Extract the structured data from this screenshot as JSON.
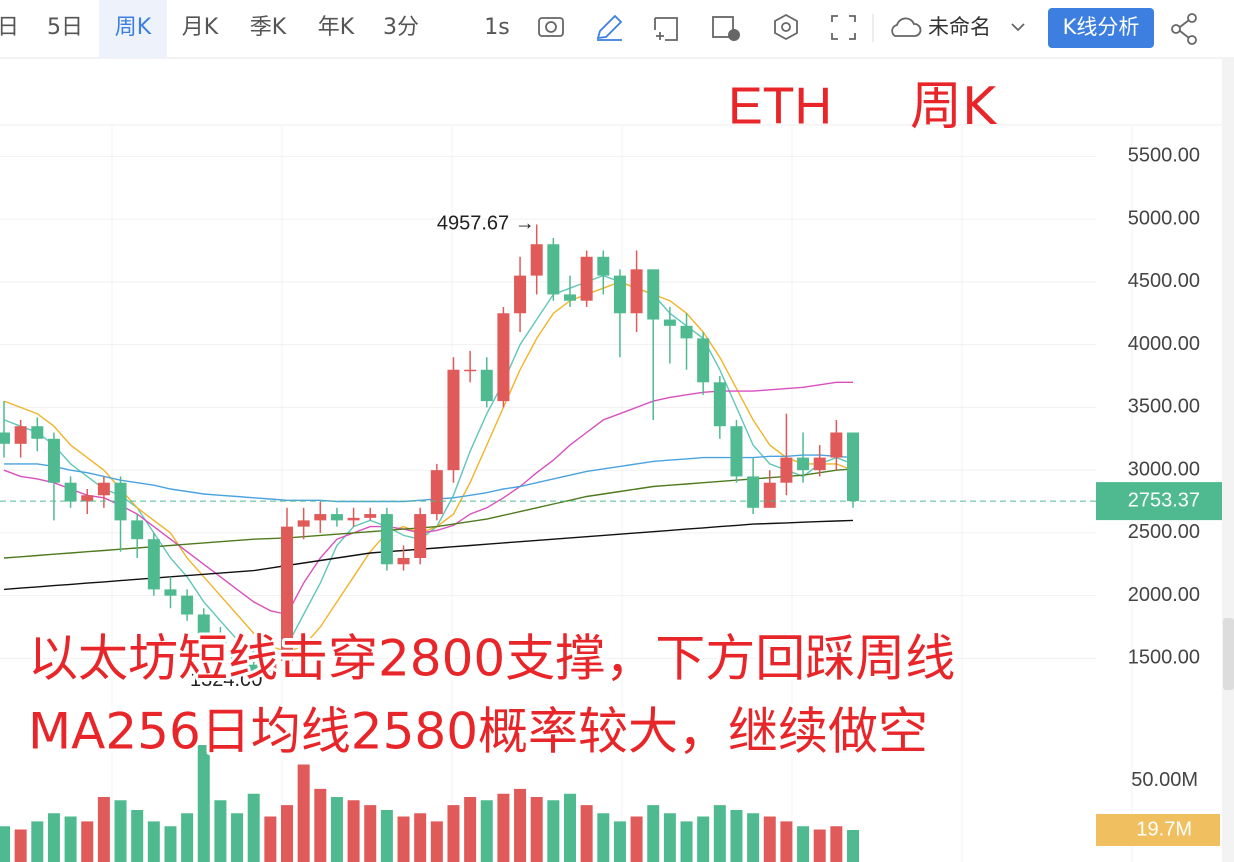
{
  "toolbar": {
    "items": [
      "日",
      "5日",
      "周K",
      "月K",
      "季K",
      "年K",
      "3分"
    ],
    "active": 2,
    "interval": "1s",
    "layout_name": "未命名",
    "analysis_button": "K线分析"
  },
  "overlay_title": [
    "ETH",
    "周K"
  ],
  "annotation": [
    "以太坊短线击穿2800支撑，下方回踩周线",
    "MA256日均线2580概率较大，继续做空"
  ],
  "chart_data": {
    "type": "candlestick",
    "open": [
      3300,
      3210,
      3350,
      3250,
      2900,
      2750,
      2800,
      2900,
      2600,
      2450,
      2050,
      2000,
      1850,
      1700,
      1600,
      1450,
      1400,
      1480,
      2550,
      2600,
      2650,
      2600,
      2620,
      2650,
      2250,
      2300,
      2650,
      3000,
      3800,
      3800,
      3550,
      4250,
      4550,
      4800,
      4400,
      4350,
      4700,
      4550,
      4250,
      4600,
      4200,
      4150,
      4050,
      3700,
      3350,
      2950,
      2700,
      2900,
      3100,
      3000,
      3100,
      3300
    ],
    "high": [
      3550,
      3400,
      3420,
      3300,
      2950,
      2850,
      2950,
      2950,
      2650,
      2500,
      2150,
      2050,
      1900,
      1750,
      1650,
      1500,
      1550,
      2700,
      2700,
      2750,
      2700,
      2700,
      2700,
      2700,
      2400,
      2700,
      3050,
      3900,
      3950,
      3900,
      4300,
      4700,
      4957.67,
      4850,
      4550,
      4750,
      4750,
      4600,
      4750,
      4600,
      4300,
      4250,
      4100,
      3750,
      3400,
      3100,
      3000,
      3450,
      3300,
      3200,
      3400,
      3300
    ],
    "low": [
      3100,
      3100,
      3150,
      2600,
      2700,
      2650,
      2700,
      2350,
      2300,
      2000,
      1900,
      1800,
      1650,
      1550,
      1450,
      1380,
      1324,
      1420,
      2450,
      2500,
      2550,
      2550,
      2600,
      2200,
      2200,
      2250,
      2600,
      2900,
      3700,
      3500,
      3500,
      4100,
      4400,
      4350,
      4300,
      4300,
      4400,
      3900,
      4100,
      3400,
      3850,
      3800,
      3600,
      3250,
      2900,
      2650,
      2700,
      2800,
      2900,
      2950,
      3000,
      2700
    ],
    "close": [
      3210,
      3350,
      3250,
      2900,
      2750,
      2800,
      2900,
      2600,
      2450,
      2050,
      2000,
      1850,
      1700,
      1600,
      1450,
      1400,
      1480,
      2550,
      2600,
      2650,
      2600,
      2620,
      2650,
      2250,
      2300,
      2650,
      3000,
      3800,
      3800,
      3550,
      4250,
      4550,
      4800,
      4400,
      4350,
      4700,
      4550,
      4250,
      4600,
      4200,
      4150,
      4050,
      3700,
      3350,
      2950,
      2700,
      2900,
      3100,
      3000,
      3100,
      3300,
      2753.37
    ],
    "volume": [
      22,
      20,
      25,
      30,
      28,
      25,
      40,
      38,
      32,
      25,
      22,
      30,
      72,
      38,
      30,
      42,
      28,
      35,
      60,
      45,
      40,
      38,
      35,
      32,
      28,
      30,
      25,
      35,
      40,
      38,
      42,
      45,
      40,
      38,
      42,
      35,
      30,
      25,
      28,
      35,
      30,
      25,
      28,
      35,
      32,
      30,
      28,
      25,
      22,
      20,
      22,
      19.7
    ],
    "up_color": "#e05a5a",
    "down_color": "#4fba8f",
    "moving_averages": [
      {
        "color": "#5fc6b8",
        "values": [
          3400,
          3350,
          3300,
          3200,
          3050,
          2950,
          2850,
          2800,
          2700,
          2500,
          2300,
          2150,
          1950,
          1800,
          1650,
          1550,
          1500,
          1600,
          1850,
          2100,
          2400,
          2550,
          2600,
          2550,
          2480,
          2450,
          2550,
          2800,
          3150,
          3450,
          3700,
          4000,
          4200,
          4400,
          4450,
          4500,
          4550,
          4500,
          4450,
          4400,
          4250,
          4150,
          4050,
          3800,
          3500,
          3200,
          3050,
          3000,
          2950,
          3050,
          3100,
          3050
        ]
      },
      {
        "color": "#f0b429",
        "values": [
          3550,
          3500,
          3450,
          3350,
          3200,
          3100,
          3000,
          2850,
          2700,
          2600,
          2500,
          2300,
          2150,
          2000,
          1850,
          1700,
          1600,
          1550,
          1600,
          1750,
          1950,
          2150,
          2350,
          2500,
          2550,
          2500,
          2550,
          2650,
          2900,
          3200,
          3500,
          3800,
          4050,
          4250,
          4350,
          4400,
          4450,
          4500,
          4450,
          4400,
          4350,
          4250,
          4100,
          3900,
          3650,
          3400,
          3200,
          3100,
          3050,
          3050,
          3050,
          3000
        ]
      },
      {
        "color": "#d94fbf",
        "values": [
          3000,
          2950,
          2930,
          2900,
          2850,
          2800,
          2780,
          2720,
          2650,
          2550,
          2450,
          2350,
          2250,
          2150,
          2050,
          1950,
          1880,
          1850,
          2100,
          2300,
          2450,
          2500,
          2550,
          2550,
          2530,
          2500,
          2520,
          2560,
          2650,
          2700,
          2780,
          2870,
          2980,
          3080,
          3200,
          3300,
          3400,
          3450,
          3500,
          3550,
          3580,
          3600,
          3620,
          3630,
          3630,
          3630,
          3640,
          3650,
          3660,
          3680,
          3700,
          3700
        ]
      },
      {
        "color": "#4aa3df",
        "values": [
          3050,
          3050,
          3050,
          3030,
          3000,
          2980,
          2950,
          2920,
          2900,
          2880,
          2850,
          2830,
          2810,
          2800,
          2790,
          2780,
          2770,
          2760,
          2760,
          2760,
          2750,
          2750,
          2750,
          2750,
          2750,
          2760,
          2770,
          2780,
          2800,
          2820,
          2850,
          2870,
          2900,
          2930,
          2960,
          2990,
          3010,
          3030,
          3050,
          3070,
          3080,
          3090,
          3100,
          3100,
          3100,
          3100,
          3110,
          3110,
          3120,
          3120,
          3110,
          3100
        ]
      },
      {
        "color": "#4f7a1f",
        "values": [
          2300,
          2310,
          2320,
          2330,
          2340,
          2350,
          2360,
          2370,
          2380,
          2390,
          2400,
          2410,
          2420,
          2430,
          2440,
          2450,
          2455,
          2460,
          2470,
          2480,
          2490,
          2500,
          2510,
          2520,
          2530,
          2540,
          2550,
          2570,
          2590,
          2610,
          2640,
          2670,
          2700,
          2730,
          2760,
          2790,
          2810,
          2830,
          2850,
          2870,
          2880,
          2890,
          2900,
          2910,
          2920,
          2930,
          2940,
          2950,
          2960,
          2980,
          3000,
          3010
        ]
      },
      {
        "color": "#111111",
        "values": [
          2050,
          2060,
          2070,
          2080,
          2090,
          2100,
          2110,
          2120,
          2130,
          2140,
          2150,
          2160,
          2170,
          2180,
          2190,
          2200,
          2220,
          2240,
          2260,
          2280,
          2300,
          2320,
          2340,
          2350,
          2360,
          2370,
          2380,
          2390,
          2400,
          2410,
          2420,
          2430,
          2440,
          2450,
          2460,
          2470,
          2480,
          2490,
          2500,
          2510,
          2520,
          2530,
          2540,
          2550,
          2560,
          2570,
          2575,
          2580,
          2585,
          2590,
          2595,
          2600
        ]
      }
    ],
    "ylim": [
      850,
      5750
    ],
    "yticks": [
      {
        "value": 1500,
        "label": "1500.00"
      },
      {
        "value": 2000,
        "label": "2000.00"
      },
      {
        "value": 2500,
        "label": "2500.00"
      },
      {
        "value": 3000,
        "label": "3000.00"
      },
      {
        "value": 3500,
        "label": "3500.00"
      },
      {
        "value": 4000,
        "label": "4000.00"
      },
      {
        "value": 4500,
        "label": "4500.00"
      },
      {
        "value": 5000,
        "label": "5000.00"
      },
      {
        "value": 5500,
        "label": "5500.00"
      }
    ],
    "volume_lim": [
      0,
      72
    ],
    "volume_ticks": [
      {
        "value": 50,
        "label": "50.00M"
      }
    ],
    "volume_tag": {
      "value": 19.7,
      "label": "19.7M"
    },
    "high_marker": {
      "value": 4957.67,
      "label": "4957.67 →"
    },
    "low_marker": {
      "value": 1324,
      "label": "1324.00"
    },
    "grid": true
  }
}
